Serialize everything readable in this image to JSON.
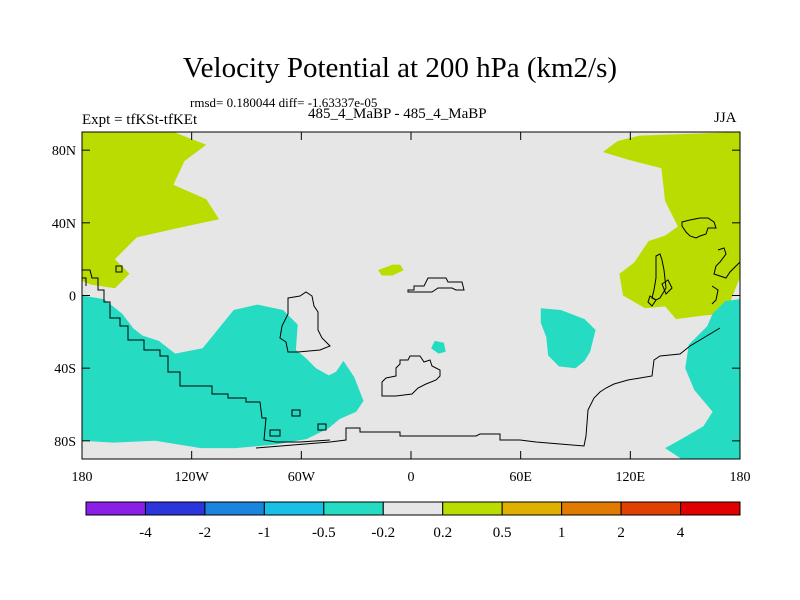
{
  "chart_data": {
    "type": "contour-map",
    "title": "Velocity Potential at 200 hPa (km2/s)",
    "stats_text": "rmsd= 0.180044 diff= -1.63337e-05",
    "left_label": "Expt = tfKSt-tfKEt",
    "center_label": "485_4_MaBP - 485_4_MaBP",
    "right_label": "JJA",
    "xlim": [
      -180,
      180
    ],
    "ylim": [
      -90,
      90
    ],
    "x_ticks": [
      {
        "value": -180,
        "label": "180"
      },
      {
        "value": -120,
        "label": "120W"
      },
      {
        "value": -60,
        "label": "60W"
      },
      {
        "value": 0,
        "label": "0"
      },
      {
        "value": 60,
        "label": "60E"
      },
      {
        "value": 120,
        "label": "120E"
      },
      {
        "value": 180,
        "label": "180"
      }
    ],
    "y_ticks": [
      {
        "value": 80,
        "label": "80N"
      },
      {
        "value": 40,
        "label": "40N"
      },
      {
        "value": 0,
        "label": "0"
      },
      {
        "value": -40,
        "label": "40S"
      },
      {
        "value": -80,
        "label": "80S"
      }
    ],
    "colorbar": {
      "labels": [
        "-4",
        "-2",
        "-1",
        "-0.5",
        "-0.2",
        "0.2",
        "0.5",
        "1",
        "2",
        "4"
      ],
      "colors": [
        "#8a1fe8",
        "#2c35dc",
        "#1a85dc",
        "#17c0e4",
        "#25dcc2",
        "#e6e6e6",
        "#bbdc00",
        "#e0b000",
        "#e07a00",
        "#e04000",
        "#e00000"
      ]
    },
    "regions": [
      {
        "name": "positive-region-northwest",
        "level": "0.2 to 0.5",
        "color": "#bbdc00",
        "polygon": [
          [
            -180,
            90
          ],
          [
            -130,
            90
          ],
          [
            -112,
            83
          ],
          [
            -124,
            74
          ],
          [
            -130,
            61
          ],
          [
            -112,
            53
          ],
          [
            -105,
            42
          ],
          [
            -128,
            37
          ],
          [
            -150,
            32
          ],
          [
            -162,
            20
          ],
          [
            -154,
            12
          ],
          [
            -162,
            4
          ],
          [
            -175,
            6
          ],
          [
            -180,
            8
          ]
        ]
      },
      {
        "name": "positive-region-northeast",
        "level": "0.2 to 0.5",
        "color": "#bbdc00",
        "polygon": [
          [
            180,
            90
          ],
          [
            180,
            10
          ],
          [
            172,
            -10
          ],
          [
            160,
            -11
          ],
          [
            145,
            -13
          ],
          [
            139,
            -6
          ],
          [
            128,
            -7
          ],
          [
            116,
            0
          ],
          [
            114,
            12
          ],
          [
            122,
            18
          ],
          [
            130,
            30
          ],
          [
            139,
            33
          ],
          [
            146,
            38
          ],
          [
            139,
            52
          ],
          [
            137,
            70
          ],
          [
            118,
            75
          ],
          [
            105,
            79
          ],
          [
            113,
            85
          ],
          [
            125,
            88
          ]
        ]
      },
      {
        "name": "positive-region-small",
        "level": "0.2 to 0.5",
        "color": "#bbdc00",
        "polygon": [
          [
            -18,
            14
          ],
          [
            -10,
            17
          ],
          [
            -6,
            17
          ],
          [
            -4,
            14
          ],
          [
            -10,
            11
          ],
          [
            -16,
            11
          ]
        ]
      },
      {
        "name": "negative-region-southwest",
        "level": "-0.5 to -0.2",
        "color": "#25dcc2",
        "polygon": [
          [
            -180,
            0
          ],
          [
            -168,
            -2
          ],
          [
            -158,
            -10
          ],
          [
            -152,
            -18
          ],
          [
            -147,
            -22
          ],
          [
            -138,
            -25
          ],
          [
            -129,
            -32
          ],
          [
            -114,
            -29
          ],
          [
            -97,
            -8
          ],
          [
            -84,
            -5
          ],
          [
            -70,
            -8
          ],
          [
            -62,
            -16
          ],
          [
            -63,
            -30
          ],
          [
            -58,
            -34
          ],
          [
            -52,
            -40
          ],
          [
            -45,
            -44
          ],
          [
            -41,
            -42
          ],
          [
            -37,
            -36
          ],
          [
            -31,
            -45
          ],
          [
            -26,
            -58
          ],
          [
            -30,
            -64
          ],
          [
            -39,
            -68
          ],
          [
            -45,
            -73
          ],
          [
            -57,
            -79
          ],
          [
            -74,
            -82
          ],
          [
            -96,
            -84
          ],
          [
            -115,
            -84
          ],
          [
            -140,
            -80
          ],
          [
            -163,
            -81
          ],
          [
            -180,
            -80
          ]
        ]
      },
      {
        "name": "negative-region-central",
        "level": "-0.5 to -0.2",
        "color": "#25dcc2",
        "polygon": [
          [
            71,
            -7
          ],
          [
            82,
            -8
          ],
          [
            95,
            -13
          ],
          [
            101,
            -19
          ],
          [
            98,
            -31
          ],
          [
            95,
            -36
          ],
          [
            90,
            -40
          ],
          [
            81,
            -39
          ],
          [
            75,
            -33
          ],
          [
            74,
            -23
          ],
          [
            71,
            -15
          ]
        ]
      },
      {
        "name": "negative-region-southeast",
        "level": "-0.5 to -0.2",
        "color": "#25dcc2",
        "polygon": [
          [
            180,
            -2
          ],
          [
            172,
            -3
          ],
          [
            165,
            -10
          ],
          [
            162,
            -17
          ],
          [
            152,
            -27
          ],
          [
            150,
            -40
          ],
          [
            155,
            -52
          ],
          [
            165,
            -64
          ],
          [
            160,
            -72
          ],
          [
            148,
            -79
          ],
          [
            139,
            -84
          ],
          [
            148,
            -90
          ],
          [
            180,
            -90
          ]
        ]
      },
      {
        "name": "negative-region-small",
        "level": "-0.5 to -0.2",
        "color": "#25dcc2",
        "polygon": [
          [
            13,
            -25
          ],
          [
            18,
            -26
          ],
          [
            19,
            -31
          ],
          [
            15,
            -32
          ],
          [
            11,
            -29
          ]
        ]
      }
    ]
  }
}
